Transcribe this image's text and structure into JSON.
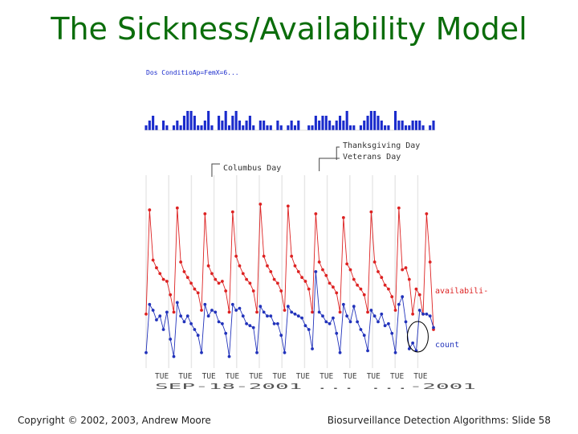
{
  "slide": {
    "title": "The Sickness/Availability Model",
    "footer_left": "Copyright © 2002, 2003, Andrew Moore",
    "footer_right": "Biosurveillance Detection Algorithms: Slide 58"
  },
  "colors": {
    "title": "#0b6d0b",
    "red_series": "#dd2222",
    "blue_series": "#2233bb",
    "bar": "#1a2bcc",
    "annotation": "#444444",
    "grid": "#e6e6e6"
  },
  "chart_data": [
    {
      "type": "bar",
      "title": "",
      "legend": "Dos ConditioAp=FemX=6...",
      "days": 84,
      "values": [
        1,
        2,
        3,
        1,
        0,
        2,
        1,
        0,
        1,
        2,
        1,
        3,
        4,
        4,
        3,
        1,
        1,
        2,
        4,
        1,
        0,
        3,
        2,
        4,
        1,
        3,
        4,
        2,
        1,
        2,
        3,
        1,
        0,
        2,
        2,
        1,
        1,
        0,
        2,
        1,
        0,
        1,
        2,
        1,
        2,
        0,
        0,
        1,
        1,
        3,
        2,
        3,
        3,
        2,
        1,
        2,
        3,
        2,
        4,
        1,
        1,
        0,
        1,
        2,
        3,
        4,
        4,
        3,
        2,
        1,
        1,
        0,
        4,
        2,
        2,
        1,
        1,
        2,
        2,
        2,
        1,
        0,
        1,
        2
      ],
      "ylim": [
        0,
        10
      ]
    },
    {
      "type": "line",
      "x_tick_labels": [
        "TUE",
        "TUE",
        "TUE",
        "TUE",
        "TUE",
        "TUE",
        "TUE",
        "TUE",
        "TUE",
        "TUE",
        "TUE",
        "TUE"
      ],
      "x_dates_text": "SEP-18-2001 ... ...-2001",
      "annotations": [
        "Columbus Day",
        "Veterans Day",
        "Thanksgiving Day"
      ],
      "ylim": [
        0,
        10
      ],
      "series": [
        {
          "name": "availability",
          "label": "availabili-",
          "values": [
            2.8,
            8.2,
            5.6,
            5.2,
            4.9,
            4.6,
            4.5,
            3.8,
            2.9,
            8.3,
            5.5,
            5.0,
            4.7,
            4.4,
            4.1,
            3.9,
            3.0,
            8.0,
            5.3,
            4.9,
            4.6,
            4.4,
            4.5,
            4.0,
            2.9,
            8.1,
            5.8,
            5.3,
            4.9,
            4.6,
            4.4,
            4.0,
            2.9,
            8.5,
            5.8,
            5.3,
            5.0,
            4.6,
            4.4,
            4.0,
            3.0,
            8.4,
            5.8,
            5.3,
            5.0,
            4.7,
            4.5,
            4.1,
            2.9,
            8.0,
            5.5,
            5.1,
            4.8,
            4.4,
            4.2,
            3.9,
            2.9,
            7.8,
            5.4,
            5.1,
            4.6,
            4.3,
            4.1,
            3.8,
            2.9,
            8.1,
            5.5,
            5.0,
            4.7,
            4.3,
            4.1,
            3.7,
            3.0,
            8.3,
            5.1,
            5.2,
            4.6,
            2.8,
            4.1,
            3.8,
            2.8,
            8.0,
            5.5,
            2.0
          ]
        },
        {
          "name": "count",
          "label": "count",
          "values": [
            0.8,
            3.3,
            3.0,
            2.5,
            2.7,
            2.0,
            2.9,
            1.5,
            0.6,
            3.4,
            2.7,
            2.4,
            2.7,
            2.3,
            2.0,
            1.7,
            0.8,
            3.3,
            2.7,
            3.0,
            2.9,
            2.4,
            2.3,
            1.8,
            0.6,
            3.3,
            3.0,
            3.1,
            2.7,
            2.3,
            2.2,
            2.1,
            0.8,
            3.2,
            2.9,
            2.7,
            2.7,
            2.3,
            2.3,
            1.7,
            0.8,
            3.2,
            2.9,
            2.8,
            2.7,
            2.6,
            2.2,
            2.0,
            1.0,
            5.0,
            2.9,
            2.7,
            2.4,
            2.3,
            2.6,
            1.8,
            0.8,
            3.3,
            2.7,
            2.4,
            3.2,
            2.4,
            2.0,
            1.7,
            0.9,
            3.0,
            2.7,
            2.4,
            2.8,
            2.2,
            2.3,
            1.8,
            0.8,
            3.3,
            3.7,
            2.4,
            1.0,
            1.3,
            0.9,
            3.0,
            2.8,
            2.8,
            2.7,
            2.1
          ]
        }
      ]
    }
  ]
}
